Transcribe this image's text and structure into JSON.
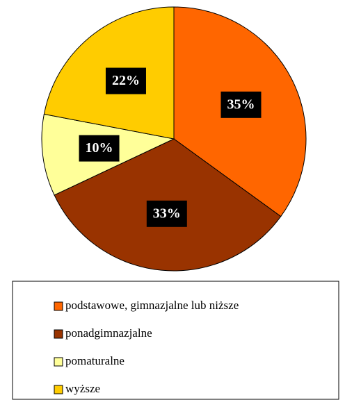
{
  "chart_data": {
    "type": "pie",
    "categories": [
      "podstawowe, gimnazjalne lub niższe",
      "ponadgimnazjalne",
      "pomaturalne",
      "wyższe"
    ],
    "values": [
      35,
      33,
      10,
      22
    ],
    "value_labels": [
      "35%",
      "33%",
      "10%",
      "22%"
    ],
    "colors": [
      "#ff6600",
      "#993300",
      "#ffff99",
      "#ffcc00"
    ],
    "legend": "bottom"
  }
}
